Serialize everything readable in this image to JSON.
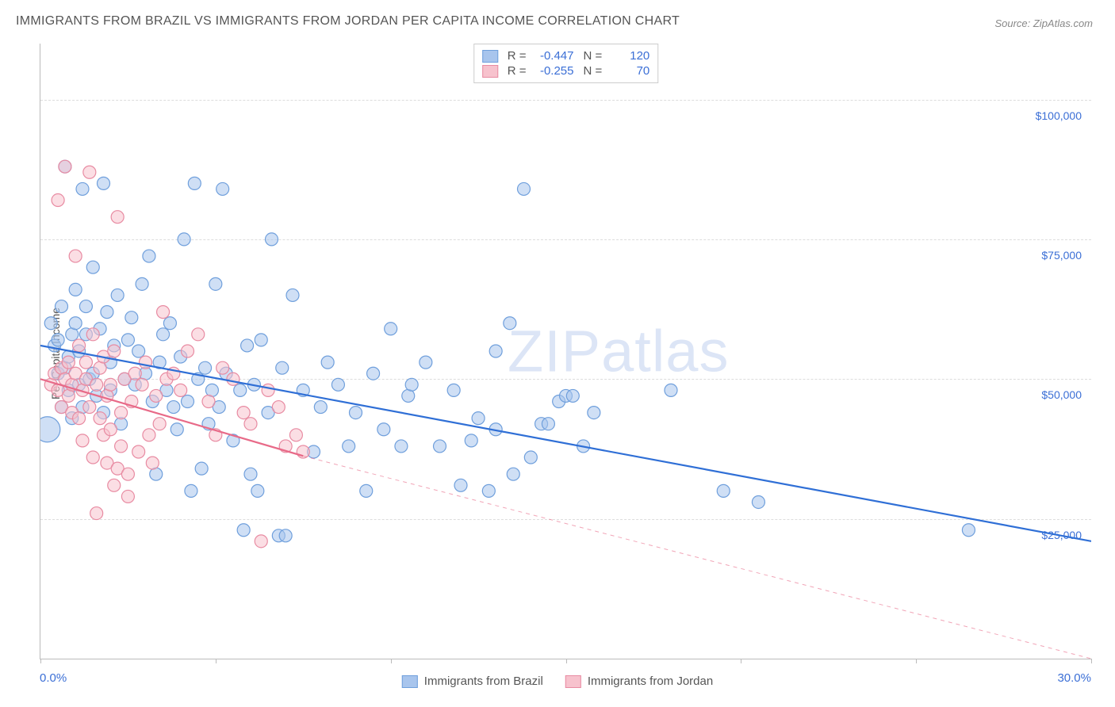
{
  "title": "IMMIGRANTS FROM BRAZIL VS IMMIGRANTS FROM JORDAN PER CAPITA INCOME CORRELATION CHART",
  "source": "Source: ZipAtlas.com",
  "ylabel": "Per Capita Income",
  "watermark_a": "ZIP",
  "watermark_b": "atlas",
  "chart": {
    "type": "scatter",
    "xlim": [
      0,
      30
    ],
    "ylim": [
      0,
      110000
    ],
    "xticks": [
      0,
      5,
      10,
      15,
      20,
      25,
      30
    ],
    "xlabel_min": "0.0%",
    "xlabel_max": "30.0%",
    "yticks": [
      {
        "v": 25000,
        "label": "$25,000"
      },
      {
        "v": 50000,
        "label": "$50,000"
      },
      {
        "v": 75000,
        "label": "$75,000"
      },
      {
        "v": 100000,
        "label": "$100,000"
      }
    ],
    "grid_color": "#dddddd",
    "background_color": "#ffffff",
    "marker_radius": 8,
    "marker_stroke_width": 1.2,
    "line_width": 2.2,
    "title_fontsize": 16,
    "label_fontsize": 14,
    "tick_color": "#bbbbbb"
  },
  "series": [
    {
      "name": "Immigrants from Brazil",
      "color_fill": "#a8c5ed",
      "color_stroke": "#6f9fdc",
      "line_color": "#2f6fd6",
      "R": "-0.447",
      "N": "120",
      "trend": {
        "x1": 0,
        "y1": 56000,
        "x2": 30,
        "y2": 21000,
        "dashed_after_x": null
      },
      "data": [
        {
          "x": 0.2,
          "y": 41000,
          "r": 16
        },
        {
          "x": 0.3,
          "y": 60000
        },
        {
          "x": 0.4,
          "y": 56000
        },
        {
          "x": 0.5,
          "y": 51000
        },
        {
          "x": 0.5,
          "y": 57000
        },
        {
          "x": 0.6,
          "y": 45000
        },
        {
          "x": 0.6,
          "y": 63000
        },
        {
          "x": 0.7,
          "y": 52000
        },
        {
          "x": 0.7,
          "y": 88000
        },
        {
          "x": 0.8,
          "y": 48000
        },
        {
          "x": 0.8,
          "y": 54000
        },
        {
          "x": 0.9,
          "y": 58000
        },
        {
          "x": 0.9,
          "y": 43000
        },
        {
          "x": 1.0,
          "y": 60000
        },
        {
          "x": 1.0,
          "y": 66000
        },
        {
          "x": 1.1,
          "y": 49000
        },
        {
          "x": 1.1,
          "y": 55000
        },
        {
          "x": 1.2,
          "y": 84000
        },
        {
          "x": 1.2,
          "y": 45000
        },
        {
          "x": 1.3,
          "y": 58000
        },
        {
          "x": 1.3,
          "y": 63000
        },
        {
          "x": 1.4,
          "y": 50000
        },
        {
          "x": 1.5,
          "y": 70000
        },
        {
          "x": 1.5,
          "y": 51000
        },
        {
          "x": 1.6,
          "y": 47000
        },
        {
          "x": 1.7,
          "y": 59000
        },
        {
          "x": 1.8,
          "y": 85000
        },
        {
          "x": 1.8,
          "y": 44000
        },
        {
          "x": 1.9,
          "y": 62000
        },
        {
          "x": 2.0,
          "y": 53000
        },
        {
          "x": 2.0,
          "y": 48000
        },
        {
          "x": 2.1,
          "y": 56000
        },
        {
          "x": 2.2,
          "y": 65000
        },
        {
          "x": 2.3,
          "y": 42000
        },
        {
          "x": 2.4,
          "y": 50000
        },
        {
          "x": 2.5,
          "y": 57000
        },
        {
          "x": 2.6,
          "y": 61000
        },
        {
          "x": 2.7,
          "y": 49000
        },
        {
          "x": 2.8,
          "y": 55000
        },
        {
          "x": 2.9,
          "y": 67000
        },
        {
          "x": 3.0,
          "y": 51000
        },
        {
          "x": 3.1,
          "y": 72000
        },
        {
          "x": 3.2,
          "y": 46000
        },
        {
          "x": 3.3,
          "y": 33000
        },
        {
          "x": 3.4,
          "y": 53000
        },
        {
          "x": 3.5,
          "y": 58000
        },
        {
          "x": 3.6,
          "y": 48000
        },
        {
          "x": 3.7,
          "y": 60000
        },
        {
          "x": 3.8,
          "y": 45000
        },
        {
          "x": 3.9,
          "y": 41000
        },
        {
          "x": 4.0,
          "y": 54000
        },
        {
          "x": 4.1,
          "y": 75000
        },
        {
          "x": 4.2,
          "y": 46000
        },
        {
          "x": 4.3,
          "y": 30000
        },
        {
          "x": 4.4,
          "y": 85000
        },
        {
          "x": 4.5,
          "y": 50000
        },
        {
          "x": 4.6,
          "y": 34000
        },
        {
          "x": 4.7,
          "y": 52000
        },
        {
          "x": 4.8,
          "y": 42000
        },
        {
          "x": 4.9,
          "y": 48000
        },
        {
          "x": 5.0,
          "y": 67000
        },
        {
          "x": 5.1,
          "y": 45000
        },
        {
          "x": 5.2,
          "y": 84000
        },
        {
          "x": 5.3,
          "y": 51000
        },
        {
          "x": 5.5,
          "y": 39000
        },
        {
          "x": 5.7,
          "y": 48000
        },
        {
          "x": 5.8,
          "y": 23000
        },
        {
          "x": 5.9,
          "y": 56000
        },
        {
          "x": 6.0,
          "y": 33000
        },
        {
          "x": 6.1,
          "y": 49000
        },
        {
          "x": 6.2,
          "y": 30000
        },
        {
          "x": 6.3,
          "y": 57000
        },
        {
          "x": 6.5,
          "y": 44000
        },
        {
          "x": 6.6,
          "y": 75000
        },
        {
          "x": 6.8,
          "y": 22000
        },
        {
          "x": 6.9,
          "y": 52000
        },
        {
          "x": 7.0,
          "y": 22000
        },
        {
          "x": 7.2,
          "y": 65000
        },
        {
          "x": 7.5,
          "y": 48000
        },
        {
          "x": 7.8,
          "y": 37000
        },
        {
          "x": 8.0,
          "y": 45000
        },
        {
          "x": 8.2,
          "y": 53000
        },
        {
          "x": 8.5,
          "y": 49000
        },
        {
          "x": 8.8,
          "y": 38000
        },
        {
          "x": 9.0,
          "y": 44000
        },
        {
          "x": 9.3,
          "y": 30000
        },
        {
          "x": 9.5,
          "y": 51000
        },
        {
          "x": 9.8,
          "y": 41000
        },
        {
          "x": 10.0,
          "y": 59000
        },
        {
          "x": 10.3,
          "y": 38000
        },
        {
          "x": 10.5,
          "y": 47000
        },
        {
          "x": 10.6,
          "y": 49000
        },
        {
          "x": 11.0,
          "y": 53000
        },
        {
          "x": 11.4,
          "y": 38000
        },
        {
          "x": 11.8,
          "y": 48000
        },
        {
          "x": 12.0,
          "y": 31000
        },
        {
          "x": 12.3,
          "y": 39000
        },
        {
          "x": 12.5,
          "y": 43000
        },
        {
          "x": 12.8,
          "y": 30000
        },
        {
          "x": 13.0,
          "y": 41000
        },
        {
          "x": 13.0,
          "y": 55000
        },
        {
          "x": 13.4,
          "y": 60000
        },
        {
          "x": 13.5,
          "y": 33000
        },
        {
          "x": 13.8,
          "y": 84000
        },
        {
          "x": 14.0,
          "y": 36000
        },
        {
          "x": 14.3,
          "y": 42000
        },
        {
          "x": 14.5,
          "y": 42000
        },
        {
          "x": 14.8,
          "y": 46000
        },
        {
          "x": 15.0,
          "y": 47000
        },
        {
          "x": 15.2,
          "y": 47000
        },
        {
          "x": 15.5,
          "y": 38000
        },
        {
          "x": 15.8,
          "y": 44000
        },
        {
          "x": 18.0,
          "y": 48000
        },
        {
          "x": 19.5,
          "y": 30000
        },
        {
          "x": 20.5,
          "y": 28000
        },
        {
          "x": 26.5,
          "y": 23000
        }
      ]
    },
    {
      "name": "Immigrants from Jordan",
      "color_fill": "#f7c2cd",
      "color_stroke": "#e88ba2",
      "line_color": "#e86a88",
      "R": "-0.255",
      "N": "70",
      "trend": {
        "x1": 0,
        "y1": 50000,
        "x2": 30,
        "y2": -5000,
        "dashed_after_x": 7.5
      },
      "data": [
        {
          "x": 0.3,
          "y": 49000
        },
        {
          "x": 0.4,
          "y": 51000
        },
        {
          "x": 0.5,
          "y": 48000
        },
        {
          "x": 0.5,
          "y": 82000
        },
        {
          "x": 0.6,
          "y": 45000
        },
        {
          "x": 0.6,
          "y": 52000
        },
        {
          "x": 0.7,
          "y": 50000
        },
        {
          "x": 0.7,
          "y": 88000
        },
        {
          "x": 0.8,
          "y": 47000
        },
        {
          "x": 0.8,
          "y": 53000
        },
        {
          "x": 0.9,
          "y": 44000
        },
        {
          "x": 0.9,
          "y": 49000
        },
        {
          "x": 1.0,
          "y": 51000
        },
        {
          "x": 1.0,
          "y": 72000
        },
        {
          "x": 1.1,
          "y": 43000
        },
        {
          "x": 1.1,
          "y": 56000
        },
        {
          "x": 1.2,
          "y": 48000
        },
        {
          "x": 1.2,
          "y": 39000
        },
        {
          "x": 1.3,
          "y": 50000
        },
        {
          "x": 1.3,
          "y": 53000
        },
        {
          "x": 1.4,
          "y": 45000
        },
        {
          "x": 1.4,
          "y": 87000
        },
        {
          "x": 1.5,
          "y": 58000
        },
        {
          "x": 1.5,
          "y": 36000
        },
        {
          "x": 1.6,
          "y": 49000
        },
        {
          "x": 1.6,
          "y": 26000
        },
        {
          "x": 1.7,
          "y": 52000
        },
        {
          "x": 1.7,
          "y": 43000
        },
        {
          "x": 1.8,
          "y": 40000
        },
        {
          "x": 1.8,
          "y": 54000
        },
        {
          "x": 1.9,
          "y": 35000
        },
        {
          "x": 1.9,
          "y": 47000
        },
        {
          "x": 2.0,
          "y": 49000
        },
        {
          "x": 2.0,
          "y": 41000
        },
        {
          "x": 2.1,
          "y": 31000
        },
        {
          "x": 2.1,
          "y": 55000
        },
        {
          "x": 2.2,
          "y": 34000
        },
        {
          "x": 2.2,
          "y": 79000
        },
        {
          "x": 2.3,
          "y": 44000
        },
        {
          "x": 2.3,
          "y": 38000
        },
        {
          "x": 2.4,
          "y": 50000
        },
        {
          "x": 2.5,
          "y": 33000
        },
        {
          "x": 2.5,
          "y": 29000
        },
        {
          "x": 2.6,
          "y": 46000
        },
        {
          "x": 2.7,
          "y": 51000
        },
        {
          "x": 2.8,
          "y": 37000
        },
        {
          "x": 2.9,
          "y": 49000
        },
        {
          "x": 3.0,
          "y": 53000
        },
        {
          "x": 3.1,
          "y": 40000
        },
        {
          "x": 3.2,
          "y": 35000
        },
        {
          "x": 3.3,
          "y": 47000
        },
        {
          "x": 3.4,
          "y": 42000
        },
        {
          "x": 3.5,
          "y": 62000
        },
        {
          "x": 3.6,
          "y": 50000
        },
        {
          "x": 3.8,
          "y": 51000
        },
        {
          "x": 4.0,
          "y": 48000
        },
        {
          "x": 4.2,
          "y": 55000
        },
        {
          "x": 4.5,
          "y": 58000
        },
        {
          "x": 4.8,
          "y": 46000
        },
        {
          "x": 5.0,
          "y": 40000
        },
        {
          "x": 5.2,
          "y": 52000
        },
        {
          "x": 5.5,
          "y": 50000
        },
        {
          "x": 5.8,
          "y": 44000
        },
        {
          "x": 6.0,
          "y": 42000
        },
        {
          "x": 6.3,
          "y": 21000
        },
        {
          "x": 6.5,
          "y": 48000
        },
        {
          "x": 6.8,
          "y": 45000
        },
        {
          "x": 7.0,
          "y": 38000
        },
        {
          "x": 7.3,
          "y": 40000
        },
        {
          "x": 7.5,
          "y": 37000
        }
      ]
    }
  ]
}
